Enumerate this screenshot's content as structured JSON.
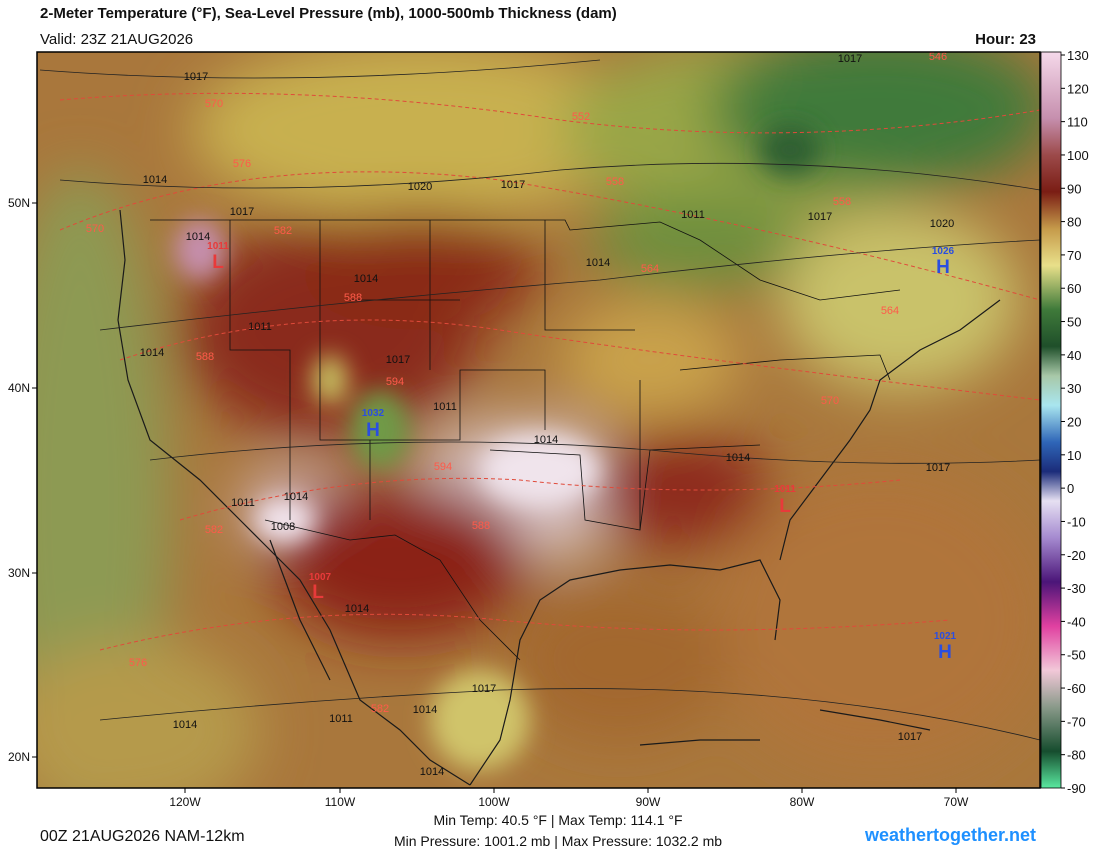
{
  "header": {
    "title": "2-Meter Temperature (°F), Sea-Level Pressure (mb), 1000-500mb Thickness (dam)",
    "valid": "Valid: 23Z 21AUG2026",
    "hour": "Hour: 23"
  },
  "colorbar": {
    "labels": [
      "130",
      "120",
      "110",
      "100",
      "90",
      "80",
      "70",
      "60",
      "50",
      "40",
      "30",
      "20",
      "10",
      "0",
      "-10",
      "-20",
      "-30",
      "-40",
      "-50",
      "-60",
      "-70",
      "-80",
      "-90"
    ]
  },
  "axes": {
    "lon": [
      "120W",
      "110W",
      "100W",
      "90W",
      "80W",
      "70W"
    ],
    "lat": [
      "50N",
      "40N",
      "30N",
      "20N"
    ]
  },
  "map_labels": {
    "isobars": [
      "1017",
      "1014",
      "1017",
      "1020",
      "1017",
      "1011",
      "1017",
      "1020",
      "1014",
      "1014",
      "1011",
      "1014",
      "1014",
      "1017",
      "1011",
      "1014",
      "1014",
      "1017",
      "1008",
      "1014",
      "1011",
      "1014",
      "1017",
      "1014",
      "1017",
      "1011",
      "1014",
      "1014",
      "1017"
    ],
    "thickness": [
      "570",
      "576",
      "570",
      "582",
      "552",
      "558",
      "558",
      "564",
      "588",
      "588",
      "594",
      "594",
      "588",
      "570",
      "582",
      "576",
      "582",
      "546",
      "564"
    ],
    "centers": [
      {
        "letter": "L",
        "value": "1011"
      },
      {
        "letter": "H",
        "value": "1032"
      },
      {
        "letter": "L",
        "value": "1007"
      },
      {
        "letter": "L",
        "value": "1011"
      },
      {
        "letter": "H",
        "value": "1026"
      },
      {
        "letter": "H",
        "value": "1021"
      }
    ]
  },
  "footer": {
    "run": "00Z 21AUG2026 NAM-12km",
    "temps": "Min Temp:  40.5 °F | Max Temp: 114.1 °F",
    "pressure": "Min Pressure: 1001.2 mb | Max Pressure: 1032.2 mb",
    "site": "weathertogether.net"
  }
}
